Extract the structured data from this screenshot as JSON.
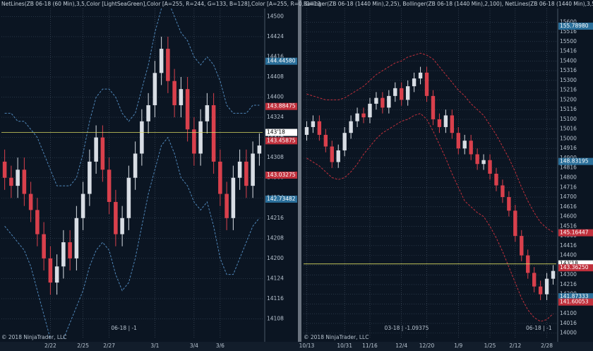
{
  "chart_data": [
    {
      "type": "candlestick",
      "title": "NetLines(ZB 06-18 (60 Min),3,5,Color [LightSeaGreen],Color [A=255, R=244, G=133, B=128],Color [A=255, R=0, G=13",
      "footer": "© 2018 NinjaTrader, LLC",
      "instrument_label": "06-18 | -1",
      "categories": [
        null,
        null,
        null,
        null,
        null,
        null,
        null,
        "2/22",
        null,
        null,
        null,
        null,
        "2/25",
        null,
        null,
        null,
        "2/27",
        null,
        null,
        null,
        null,
        null,
        null,
        "3/1",
        null,
        null,
        null,
        null,
        null,
        "3/4",
        null,
        null,
        null,
        "3/6",
        null,
        null,
        null,
        null,
        null,
        null
      ],
      "open": [
        143.2,
        143.0,
        142.9,
        143.1,
        142.8,
        142.6,
        142.3,
        142.0,
        141.7,
        141.9,
        142.2,
        142.0,
        142.5,
        142.8,
        143.2,
        143.5,
        143.1,
        142.7,
        142.3,
        142.5,
        143.0,
        143.3,
        143.7,
        143.9,
        144.3,
        144.6,
        144.2,
        143.9,
        144.1,
        143.6,
        143.3,
        143.7,
        143.9,
        143.2,
        142.8,
        142.5,
        143.0,
        143.2,
        142.9,
        143.3
      ],
      "high": [
        143.35,
        143.15,
        143.25,
        143.25,
        142.95,
        142.75,
        142.45,
        142.15,
        142.05,
        142.35,
        142.35,
        142.65,
        142.95,
        143.35,
        143.65,
        143.65,
        143.25,
        142.85,
        142.65,
        143.15,
        143.45,
        143.85,
        144.05,
        144.45,
        144.75,
        144.75,
        144.35,
        144.25,
        144.25,
        143.75,
        143.85,
        144.05,
        144.05,
        143.35,
        142.95,
        143.15,
        143.35,
        143.35,
        143.45,
        143.55
      ],
      "low": [
        142.85,
        142.75,
        142.75,
        142.65,
        142.45,
        142.15,
        141.85,
        141.55,
        141.55,
        141.75,
        141.85,
        141.85,
        142.35,
        142.65,
        143.05,
        142.95,
        142.55,
        142.15,
        142.15,
        142.35,
        142.85,
        143.15,
        143.55,
        143.75,
        144.15,
        144.05,
        143.75,
        143.75,
        143.45,
        143.15,
        143.15,
        143.55,
        143.05,
        142.65,
        142.35,
        142.35,
        142.85,
        142.75,
        142.75,
        143.15
      ],
      "close": [
        143.0,
        142.9,
        143.1,
        142.8,
        142.6,
        142.3,
        142.0,
        141.7,
        141.9,
        142.2,
        142.0,
        142.5,
        142.8,
        143.2,
        143.5,
        143.1,
        142.7,
        142.3,
        142.5,
        143.0,
        143.3,
        143.7,
        143.9,
        144.3,
        144.6,
        144.2,
        143.9,
        144.1,
        143.6,
        143.3,
        143.7,
        143.9,
        143.2,
        142.8,
        142.5,
        143.0,
        143.2,
        142.9,
        143.3,
        143.4
      ],
      "up_color": "#d8dde4",
      "down_color": "#d9404c",
      "bands": [
        {
          "color": "#4f86b8",
          "values": [
            143.8,
            143.8,
            143.7,
            143.7,
            143.6,
            143.5,
            143.3,
            143.1,
            142.9,
            142.9,
            142.9,
            143.0,
            143.3,
            143.7,
            144.0,
            144.1,
            144.1,
            144.0,
            143.8,
            143.7,
            143.8,
            144.1,
            144.4,
            144.8,
            145.1,
            145.2,
            145.0,
            144.8,
            144.7,
            144.5,
            144.4,
            144.5,
            144.4,
            144.2,
            143.9,
            143.8,
            143.8,
            143.8,
            143.9,
            143.9
          ]
        },
        {
          "color": "#4f86b8",
          "values": [
            142.4,
            142.3,
            142.2,
            142.1,
            141.9,
            141.6,
            141.3,
            141.0,
            140.9,
            141.0,
            141.2,
            141.4,
            141.6,
            141.9,
            142.1,
            142.2,
            142.1,
            141.8,
            141.6,
            141.7,
            142.0,
            142.4,
            142.8,
            143.1,
            143.4,
            143.5,
            143.3,
            143.0,
            142.9,
            142.7,
            142.6,
            142.7,
            142.4,
            142.0,
            141.8,
            141.8,
            142.0,
            142.2,
            142.4,
            142.5
          ]
        }
      ],
      "ylim": [
        141.0,
        145.1
      ],
      "yticks": [
        {
          "value": 145.0,
          "label": "14500"
        },
        {
          "value": 144.75,
          "label": "14424"
        },
        {
          "value": 144.5,
          "label": "14416"
        },
        {
          "value": 144.25,
          "label": "14408"
        },
        {
          "value": 144.0,
          "label": "14400"
        },
        {
          "value": 143.75,
          "label": "14324"
        },
        {
          "value": 143.5,
          "label": "14316"
        },
        {
          "value": 143.25,
          "label": "14308"
        },
        {
          "value": 143.0,
          "label": "14300"
        },
        {
          "value": 142.75,
          "label": "14224"
        },
        {
          "value": 142.5,
          "label": "14216"
        },
        {
          "value": 142.25,
          "label": "14208"
        },
        {
          "value": 142.0,
          "label": "14200"
        },
        {
          "value": 141.75,
          "label": "14124"
        },
        {
          "value": 141.5,
          "label": "14116"
        },
        {
          "value": 141.25,
          "label": "14108"
        }
      ],
      "grid": true,
      "markers": [
        {
          "value": 144.4458,
          "label": "144.44580",
          "color": "#2a6f9a",
          "line": false
        },
        {
          "value": 143.88475,
          "label": "143.88475",
          "color": "#c0303c",
          "line": false
        },
        {
          "value": 143.5625,
          "label": "143'18",
          "color": "#ffffff",
          "line": true
        },
        {
          "value": 143.45875,
          "label": "143.45875",
          "color": "#c0303c",
          "line": false
        },
        {
          "value": 143.03275,
          "label": "143.03275",
          "color": "#c0303c",
          "line": false
        },
        {
          "value": 142.73482,
          "label": "142.73482",
          "color": "#2a6f9a",
          "line": false
        }
      ]
    },
    {
      "type": "candlestick",
      "title": "Bollinger(ZB 06-18 (1440 Min),2,25), Bollinger(ZB 06-18 (1440 Min),2,100), NetLines(ZB 06-18 (1440 Min),3,5,Colo",
      "footer": "© 2018 NinjaTrader, LLC",
      "instrument_label": "06-18 | -1",
      "note": "03-18 | -1.09375",
      "categories": [
        "10/13",
        null,
        null,
        null,
        null,
        null,
        "10/31",
        null,
        null,
        null,
        "11/16",
        null,
        null,
        null,
        null,
        "12/4",
        null,
        null,
        null,
        "12/20",
        null,
        null,
        null,
        null,
        "1/9",
        null,
        null,
        null,
        null,
        "1/25",
        null,
        null,
        null,
        "2/12",
        null,
        null,
        null,
        null,
        "2/28",
        null
      ],
      "open": [
        150.2,
        150.6,
        150.9,
        150.2,
        149.6,
        148.8,
        149.4,
        150.3,
        150.9,
        151.3,
        151.1,
        151.8,
        152.1,
        151.6,
        152.2,
        152.6,
        152.0,
        152.7,
        153.1,
        153.4,
        152.2,
        151.0,
        150.6,
        151.2,
        150.3,
        149.5,
        149.9,
        149.2,
        148.7,
        148.9,
        148.2,
        147.6,
        147.0,
        146.3,
        145.0,
        144.0,
        143.1,
        142.4,
        142.0,
        142.8
      ],
      "high": [
        150.9,
        151.2,
        151.2,
        150.5,
        149.9,
        149.7,
        150.6,
        151.2,
        151.6,
        151.6,
        152.1,
        152.4,
        152.4,
        152.5,
        152.9,
        152.9,
        153.0,
        153.4,
        153.7,
        153.7,
        152.5,
        151.3,
        151.5,
        151.5,
        150.6,
        150.2,
        150.2,
        149.5,
        149.2,
        149.2,
        148.5,
        147.9,
        147.3,
        146.6,
        145.3,
        144.3,
        143.4,
        142.7,
        143.1,
        143.5
      ],
      "low": [
        149.9,
        150.3,
        149.9,
        149.3,
        148.5,
        148.5,
        149.1,
        150.0,
        150.6,
        150.8,
        150.8,
        151.5,
        151.3,
        151.3,
        151.9,
        151.7,
        151.7,
        152.4,
        152.8,
        151.9,
        150.7,
        150.3,
        150.3,
        150.0,
        149.2,
        149.2,
        148.9,
        148.4,
        148.4,
        147.9,
        147.3,
        146.7,
        146.0,
        144.7,
        143.7,
        142.8,
        142.1,
        141.7,
        141.7,
        142.5
      ],
      "close": [
        150.6,
        150.9,
        150.2,
        149.6,
        148.8,
        149.4,
        150.3,
        150.9,
        151.3,
        151.1,
        151.8,
        152.1,
        151.6,
        152.2,
        152.6,
        152.0,
        152.7,
        153.1,
        153.4,
        152.2,
        151.0,
        150.6,
        151.2,
        150.3,
        149.5,
        149.9,
        149.2,
        148.7,
        148.9,
        148.2,
        147.6,
        147.0,
        146.3,
        145.0,
        144.0,
        143.1,
        142.4,
        142.0,
        142.8,
        143.2
      ],
      "up_color": "#d8dde4",
      "down_color": "#d9404c",
      "bands": [
        {
          "color": "#c0303c",
          "values": [
            152.3,
            152.2,
            152.1,
            152.0,
            152.0,
            152.0,
            152.1,
            152.3,
            152.5,
            152.7,
            153.0,
            153.3,
            153.5,
            153.7,
            153.9,
            154.0,
            154.2,
            154.3,
            154.4,
            154.3,
            154.1,
            153.7,
            153.3,
            152.9,
            152.5,
            152.2,
            151.8,
            151.5,
            151.2,
            150.7,
            150.2,
            149.6,
            149.0,
            148.3,
            147.5,
            146.8,
            146.2,
            145.7,
            145.4,
            145.2
          ]
        },
        {
          "color": "#c0303c",
          "values": [
            149.0,
            148.8,
            148.6,
            148.3,
            148.0,
            147.9,
            148.0,
            148.3,
            148.7,
            149.2,
            149.6,
            150.0,
            150.3,
            150.5,
            150.7,
            150.9,
            151.0,
            151.2,
            151.3,
            151.0,
            150.4,
            149.7,
            149.0,
            148.2,
            147.5,
            146.8,
            146.5,
            146.2,
            146.0,
            145.5,
            144.9,
            144.2,
            143.4,
            142.6,
            141.8,
            141.2,
            140.8,
            140.6,
            140.7,
            141.0
          ]
        }
      ],
      "ylim": [
        139.7,
        156.7
      ],
      "yticks": [
        {
          "value": 156.0,
          "label": "15600"
        },
        {
          "value": 155.5,
          "label": "15516"
        },
        {
          "value": 155.0,
          "label": "15500"
        },
        {
          "value": 154.5,
          "label": "15416"
        },
        {
          "value": 154.0,
          "label": "15400"
        },
        {
          "value": 153.5,
          "label": "15316"
        },
        {
          "value": 153.0,
          "label": "15300"
        },
        {
          "value": 152.5,
          "label": "15216"
        },
        {
          "value": 152.0,
          "label": "15200"
        },
        {
          "value": 151.5,
          "label": "15116"
        },
        {
          "value": 151.0,
          "label": "15100"
        },
        {
          "value": 150.5,
          "label": "15016"
        },
        {
          "value": 150.0,
          "label": "15000"
        },
        {
          "value": 149.5,
          "label": "14916"
        },
        {
          "value": 149.0,
          "label": "14900"
        },
        {
          "value": 148.5,
          "label": "14816"
        },
        {
          "value": 148.0,
          "label": "14800"
        },
        {
          "value": 147.5,
          "label": "14716"
        },
        {
          "value": 147.0,
          "label": "14700"
        },
        {
          "value": 146.5,
          "label": "14616"
        },
        {
          "value": 146.0,
          "label": "14600"
        },
        {
          "value": 145.5,
          "label": "14516"
        },
        {
          "value": 145.0,
          "label": "14500"
        },
        {
          "value": 144.5,
          "label": "14416"
        },
        {
          "value": 144.0,
          "label": "14400"
        },
        {
          "value": 143.5,
          "label": "14316"
        },
        {
          "value": 143.0,
          "label": "14300"
        },
        {
          "value": 142.5,
          "label": "14216"
        },
        {
          "value": 142.0,
          "label": "14200"
        },
        {
          "value": 141.5,
          "label": "14116"
        },
        {
          "value": 141.0,
          "label": "14100"
        },
        {
          "value": 140.5,
          "label": "14016"
        },
        {
          "value": 140.0,
          "label": "14000"
        }
      ],
      "grid": true,
      "markers": [
        {
          "value": 155.7898,
          "label": "155.78980",
          "color": "#2a6f9a",
          "line": false
        },
        {
          "value": 148.83195,
          "label": "148.83195",
          "color": "#2a6f9a",
          "line": false
        },
        {
          "value": 145.16447,
          "label": "145.16447",
          "color": "#c0303c",
          "line": false
        },
        {
          "value": 143.5625,
          "label": "143'18",
          "color": "#ffffff",
          "line": true
        },
        {
          "value": 143.3625,
          "label": "143.36250",
          "color": "#c0303c",
          "line": false
        },
        {
          "value": 141.87333,
          "label": "141.87333",
          "color": "#2a6f9a",
          "line": false
        },
        {
          "value": 141.60053,
          "label": "141.60053",
          "color": "#c0303c",
          "line": false
        }
      ]
    }
  ]
}
